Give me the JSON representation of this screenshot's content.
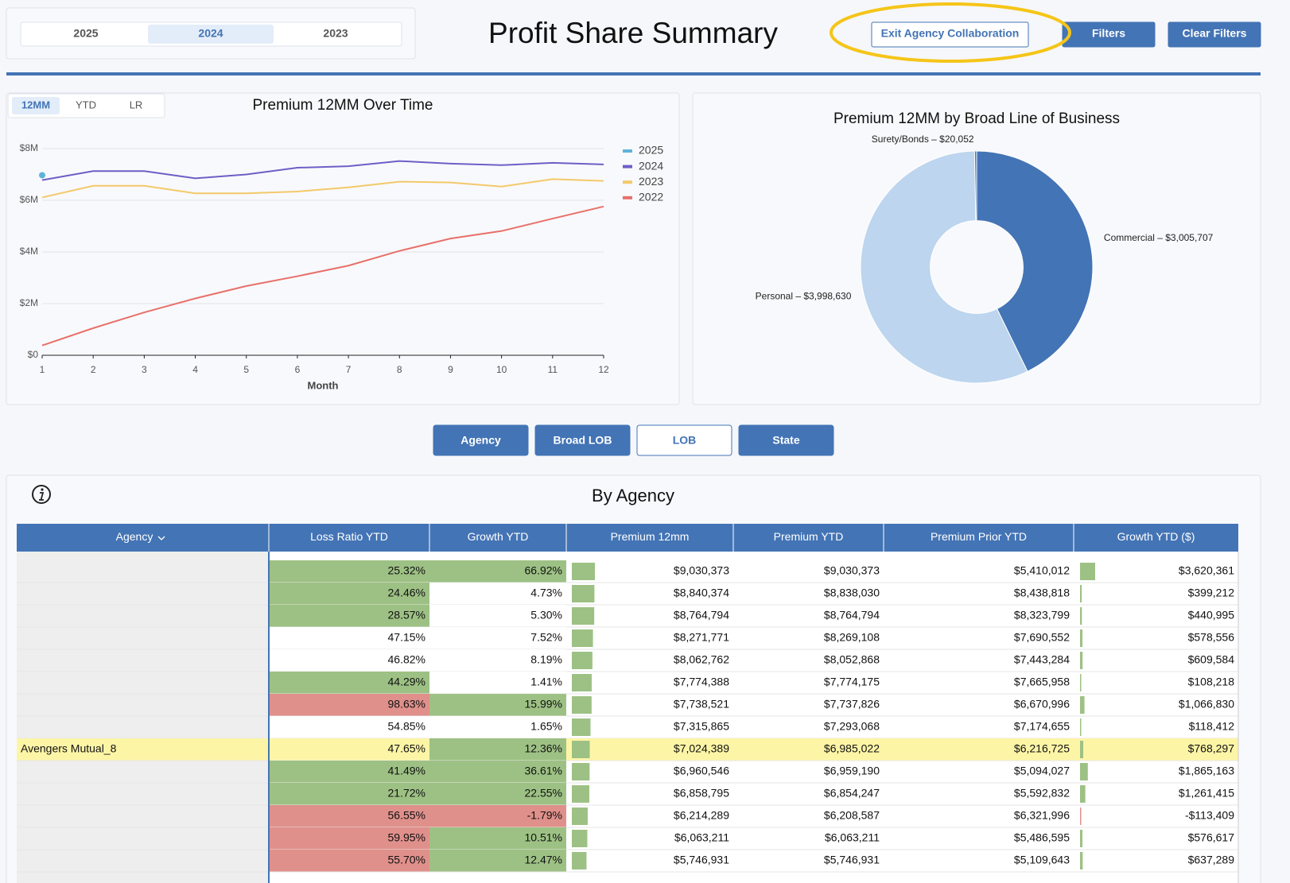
{
  "header": {
    "years": [
      "2025",
      "2024",
      "2023"
    ],
    "selected_year": 1,
    "title": "Profit Share Summary",
    "buttons": [
      "Exit Agency Collaboration",
      "Filters",
      "Clear Filters"
    ]
  },
  "chart_data": [
    {
      "type": "line",
      "tabs": [
        "12MM",
        "YTD",
        "LR"
      ],
      "selected_tab": 0,
      "title": "Premium 12MM Over Time",
      "xlabel": "Month",
      "x": [
        1,
        2,
        3,
        4,
        5,
        6,
        7,
        8,
        9,
        10,
        11,
        12
      ],
      "xlim": [
        1,
        12
      ],
      "xticks": [
        1,
        2,
        3,
        4,
        5,
        6,
        7,
        8,
        9,
        10,
        11,
        12
      ],
      "ylim": [
        0,
        8000000
      ],
      "yticks": [
        {
          "value": 0,
          "label": "$0"
        },
        {
          "value": 2000000,
          "label": "$2M"
        },
        {
          "value": 4000000,
          "label": "$4M"
        },
        {
          "value": 6000000,
          "label": "$6M"
        },
        {
          "value": 8000000,
          "label": "$8M"
        }
      ],
      "grid": true,
      "series": [
        {
          "name": "2025",
          "color": "#5fb3d9",
          "values": [
            6970000,
            null,
            null,
            null,
            null,
            null,
            null,
            null,
            null,
            null,
            null,
            null
          ]
        },
        {
          "name": "2024",
          "color": "#6c5fc7",
          "values": [
            6780000,
            7130000,
            7130000,
            6850000,
            7000000,
            7260000,
            7320000,
            7520000,
            7420000,
            7360000,
            7450000,
            7390000
          ]
        },
        {
          "name": "2023",
          "color": "#f3c96a",
          "values": [
            6110000,
            6560000,
            6560000,
            6270000,
            6270000,
            6340000,
            6500000,
            6720000,
            6690000,
            6530000,
            6820000,
            6750000
          ]
        },
        {
          "name": "2022",
          "color": "#e8706a",
          "values": [
            380000,
            1050000,
            1660000,
            2200000,
            2680000,
            3060000,
            3470000,
            4040000,
            4520000,
            4810000,
            5290000,
            5760000
          ]
        }
      ]
    },
    {
      "type": "pie",
      "title": "Premium 12MM by Broad Line of Business",
      "values": [
        3005707,
        3998630,
        20052
      ],
      "value_labels": [
        "Commercial – $3,005,707",
        "Personal – $3,998,630",
        "Surety/Bonds – $20,052"
      ],
      "colors": [
        "#4374b5",
        "#bdd5ee",
        "#4374b5"
      ],
      "hole": 0.4
    }
  ],
  "view_buttons": [
    "Agency",
    "Broad LOB",
    "LOB",
    "State"
  ],
  "outlined_button": 2,
  "table": {
    "title": "By Agency",
    "columns": [
      "Agency",
      "Loss Ratio YTD",
      "Growth YTD",
      "Premium 12mm",
      "Premium YTD",
      "Premium Prior YTD",
      "Growth YTD ($)"
    ],
    "highlight_row": 8,
    "rows": [
      [
        null,
        "25.32%",
        "66.92%",
        "$9,030,373",
        "$9,030,373",
        "$5,410,012",
        "$3,620,361"
      ],
      [
        null,
        "24.46%",
        "4.73%",
        "$8,840,374",
        "$8,838,030",
        "$8,438,818",
        "$399,212"
      ],
      [
        null,
        "28.57%",
        "5.30%",
        "$8,764,794",
        "$8,764,794",
        "$8,323,799",
        "$440,995"
      ],
      [
        null,
        "47.15%",
        "7.52%",
        "$8,271,771",
        "$8,269,108",
        "$7,690,552",
        "$578,556"
      ],
      [
        null,
        "46.82%",
        "8.19%",
        "$8,062,762",
        "$8,052,868",
        "$7,443,284",
        "$609,584"
      ],
      [
        null,
        "44.29%",
        "1.41%",
        "$7,774,388",
        "$7,774,175",
        "$7,665,958",
        "$108,218"
      ],
      [
        null,
        "98.63%",
        "15.99%",
        "$7,738,521",
        "$7,737,826",
        "$6,670,996",
        "$1,066,830"
      ],
      [
        null,
        "54.85%",
        "1.65%",
        "$7,315,865",
        "$7,293,068",
        "$7,174,655",
        "$118,412"
      ],
      [
        "Avengers Mutual_8",
        "47.65%",
        "12.36%",
        "$7,024,389",
        "$6,985,022",
        "$6,216,725",
        "$768,297"
      ],
      [
        null,
        "41.49%",
        "36.61%",
        "$6,960,546",
        "$6,959,190",
        "$5,094,027",
        "$1,865,163"
      ],
      [
        null,
        "21.72%",
        "22.55%",
        "$6,858,795",
        "$6,854,247",
        "$5,592,832",
        "$1,261,415"
      ],
      [
        null,
        "56.55%",
        "-1.79%",
        "$6,214,289",
        "$6,208,587",
        "$6,321,996",
        "-$113,409"
      ],
      [
        null,
        "59.95%",
        "10.51%",
        "$6,063,211",
        "$6,063,211",
        "$5,486,595",
        "$576,617"
      ],
      [
        null,
        "55.70%",
        "12.47%",
        "$5,746,931",
        "$5,746,931",
        "$5,109,643",
        "$637,289"
      ]
    ],
    "cell_colors": [
      [
        "#9dc184",
        "#9dc184"
      ],
      [
        "#9dc184",
        "#ffffff"
      ],
      [
        "#9dc184",
        "#ffffff"
      ],
      [
        "#ffffff",
        "#ffffff"
      ],
      [
        "#ffffff",
        "#ffffff"
      ],
      [
        "#9dc184",
        "#ffffff"
      ],
      [
        "#e0908b",
        "#9dc184"
      ],
      [
        "#ffffff",
        "#ffffff"
      ],
      [
        "#ffffff",
        "#9dc184"
      ],
      [
        "#9dc184",
        "#9dc184"
      ],
      [
        "#9dc184",
        "#9dc184"
      ],
      [
        "#e0908b",
        "#e0908b"
      ],
      [
        "#e0908b",
        "#9dc184"
      ],
      [
        "#e0908b",
        "#9dc184"
      ]
    ]
  }
}
